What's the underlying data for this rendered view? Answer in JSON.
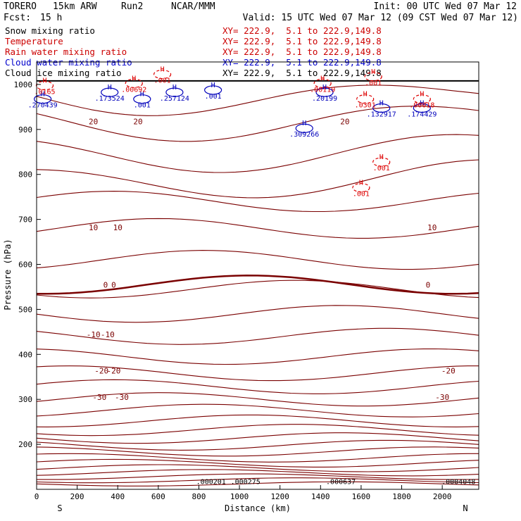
{
  "header": {
    "model": "TORERO",
    "resolution": "15km ARW",
    "run": "Run2",
    "org": "NCAR/MMM",
    "init": "Init: 00 UTC Wed 07 Mar 12",
    "fcst_label": "Fcst:",
    "fcst_value": "15 h",
    "valid": "Valid: 15 UTC Wed 07 Mar 12 (09 CST Wed 07 Mar 12)"
  },
  "fields": [
    {
      "name": "Snow mixing ratio",
      "xy": "XY= 222.9,  5.1 to 222.9,149.8",
      "color": "#000000"
    },
    {
      "name": "Temperature",
      "xy": "XY= 222.9,  5.1 to 222.9,149.8",
      "color": "#cc0000"
    },
    {
      "name": "Rain water mixing ratio",
      "xy": "XY= 222.9,  5.1 to 222.9,149.8",
      "color": "#cc0000"
    },
    {
      "name": "Cloud water mixing ratio",
      "xy": "XY= 222.9,  5.1 to 222.9,149.8",
      "color": "#0000cc"
    },
    {
      "name": "Cloud ice mixing ratio",
      "xy": "XY= 222.9,  5.1 to 222.9,149.8",
      "color": "#000000"
    }
  ],
  "chart_data": {
    "type": "cross-section contour",
    "xlabel": "Distance (km)",
    "ylabel": "Pressure (hPa)",
    "xlim": [
      0,
      2180
    ],
    "ylim": [
      1050,
      100
    ],
    "x_ticks": [
      0,
      200,
      400,
      600,
      800,
      1000,
      1200,
      1400,
      1600,
      1800,
      2000
    ],
    "y_ticks": [
      200,
      300,
      400,
      500,
      600,
      700,
      800,
      900,
      1000
    ],
    "x_end_labels": {
      "left": "S",
      "right": "N"
    },
    "temperature_color": "#7a0000",
    "rain_color": "#dd0000",
    "cloud_color": "#0000bb",
    "temperature_isotherms": [
      {
        "label": "-30",
        "p": 310
      },
      {
        "label": "-20",
        "p": 365
      },
      {
        "label": "-10",
        "p": 445
      },
      {
        "label": "0",
        "p": 555
      },
      {
        "label": "10",
        "p": 680
      },
      {
        "label": "20",
        "p": 920
      }
    ],
    "temperature_label_rows": [
      {
        "p": 305,
        "items": [
          {
            "x": 310,
            "t": "-30"
          },
          {
            "x": 420,
            "t": "-30"
          },
          {
            "x": 2000,
            "t": "-30"
          }
        ]
      },
      {
        "p": 364,
        "items": [
          {
            "x": 320,
            "t": "-20"
          },
          {
            "x": 380,
            "t": "-20"
          },
          {
            "x": 2030,
            "t": "-20"
          }
        ]
      },
      {
        "p": 444,
        "items": [
          {
            "x": 280,
            "t": "-10"
          },
          {
            "x": 350,
            "t": "-10"
          }
        ]
      },
      {
        "p": 555,
        "items": [
          {
            "x": 340,
            "t": "0"
          },
          {
            "x": 380,
            "t": "0"
          },
          {
            "x": 1930,
            "t": "0"
          }
        ]
      },
      {
        "p": 682,
        "items": [
          {
            "x": 280,
            "t": "10"
          },
          {
            "x": 400,
            "t": "10"
          },
          {
            "x": 1950,
            "t": "10"
          }
        ]
      },
      {
        "p": 918,
        "items": [
          {
            "x": 280,
            "t": "20"
          },
          {
            "x": 500,
            "t": "20"
          },
          {
            "x": 1520,
            "t": "20"
          }
        ]
      }
    ],
    "upper_labels": [
      {
        "x": 860,
        "t": ".000201"
      },
      {
        "x": 1030,
        "t": ".000275"
      },
      {
        "x": 1500,
        "t": ".000637"
      },
      {
        "x": 2080,
        "t": ".0004048"
      }
    ],
    "highs": [
      {
        "x": 30,
        "p": 955,
        "t": ".270439",
        "c": "cloud"
      },
      {
        "x": 40,
        "p": 985,
        "t": ".0165",
        "c": "rain"
      },
      {
        "x": 360,
        "p": 970,
        "t": ".173524",
        "c": "cloud"
      },
      {
        "x": 520,
        "p": 955,
        "t": ".001",
        "c": "cloud"
      },
      {
        "x": 480,
        "p": 990,
        "t": ".00692",
        "c": "rain"
      },
      {
        "x": 680,
        "p": 970,
        "t": ".257124",
        "c": "cloud"
      },
      {
        "x": 620,
        "p": 1010,
        "t": ".001",
        "c": "rain"
      },
      {
        "x": 870,
        "p": 975,
        "t": ".001",
        "c": "cloud"
      },
      {
        "x": 1320,
        "p": 890,
        "t": ".309266",
        "c": "cloud"
      },
      {
        "x": 1600,
        "p": 758,
        "t": ".001",
        "c": "rain"
      },
      {
        "x": 1700,
        "p": 815,
        "t": ".001",
        "c": "rain"
      },
      {
        "x": 1700,
        "p": 935,
        "t": ".132917",
        "c": "cloud"
      },
      {
        "x": 1620,
        "p": 955,
        "t": ".0301",
        "c": "rain"
      },
      {
        "x": 1420,
        "p": 970,
        "t": ".20199",
        "c": "cloud"
      },
      {
        "x": 1410,
        "p": 990,
        "t": ".00119",
        "c": "rain"
      },
      {
        "x": 1660,
        "p": 1005,
        "t": ".001",
        "c": "rain"
      },
      {
        "x": 1900,
        "p": 935,
        "t": ".174429",
        "c": "cloud"
      },
      {
        "x": 1900,
        "p": 955,
        "t": ".00018",
        "c": "rain"
      }
    ]
  }
}
